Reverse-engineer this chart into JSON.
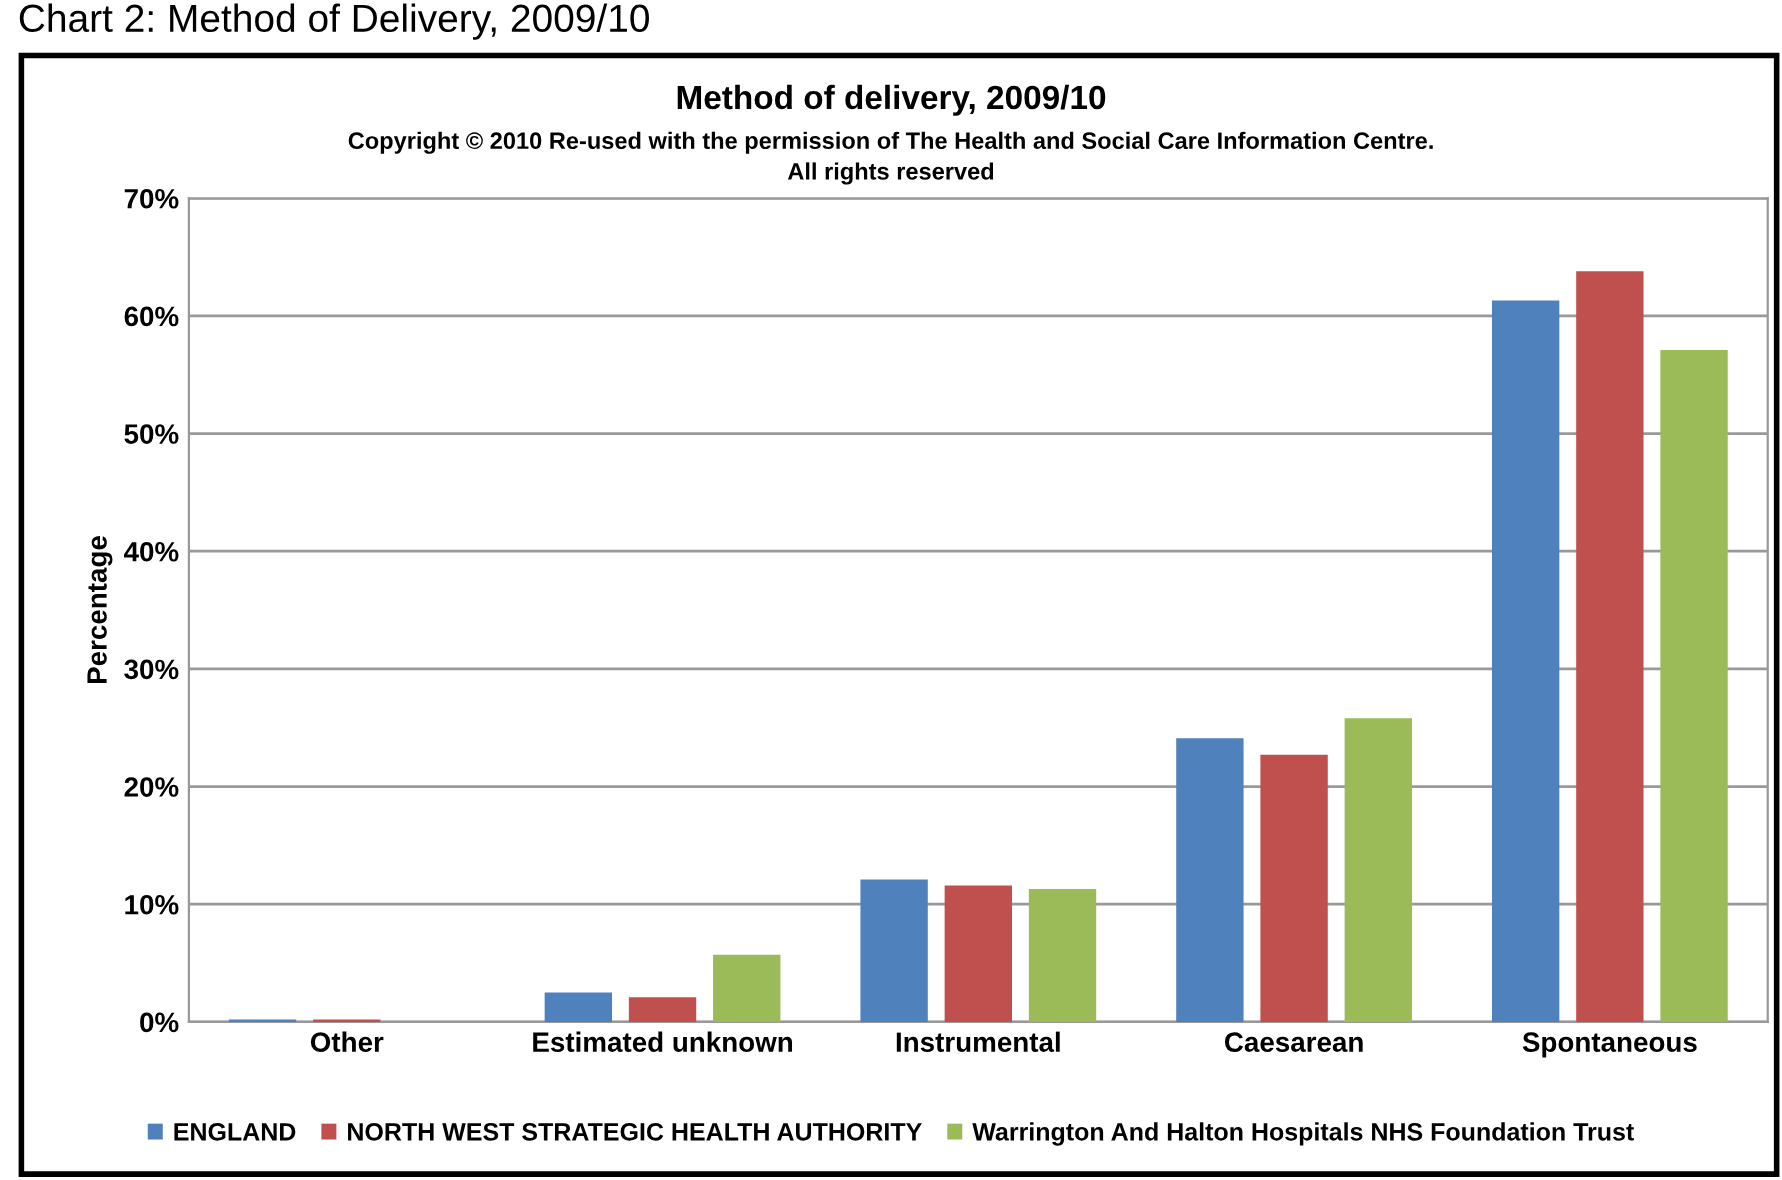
{
  "chart_data": {
    "type": "bar",
    "title": "Method of delivery, 2009/10",
    "subtitle": "Copyright © 2010 Re-used with the permission of The Health and Social Care Information Centre.\nAll rights reserved",
    "annotations": [
      "Chart 2: Method of Delivery, 2009/10"
    ],
    "ylabel": "Percentage",
    "categories": [
      "Other",
      "Estimated unknown",
      "Instrumental",
      "Caesarean",
      "Spontaneous"
    ],
    "series": [
      {
        "name": "ENGLAND",
        "color": "#4f81bd",
        "values": [
          0.2,
          2.5,
          12.1,
          24.1,
          61.3
        ]
      },
      {
        "name": "NORTH WEST STRATEGIC HEALTH AUTHORITY",
        "color": "#c0504d",
        "values": [
          0.2,
          2.1,
          11.6,
          22.7,
          63.8
        ]
      },
      {
        "name": "Warrington And Halton Hospitals NHS Foundation Trust",
        "color": "#9bbb59",
        "values": [
          0,
          5.7,
          11.3,
          25.8,
          57.1
        ]
      }
    ],
    "ylim": [
      0,
      70
    ],
    "yticks": [
      {
        "value": 0,
        "label": "0%"
      },
      {
        "value": 10,
        "label": "10%"
      },
      {
        "value": 20,
        "label": "20%"
      },
      {
        "value": 30,
        "label": "30%"
      },
      {
        "value": 40,
        "label": "40%"
      },
      {
        "value": 50,
        "label": "50%"
      },
      {
        "value": 60,
        "label": "60%"
      },
      {
        "value": 70,
        "label": "70%"
      }
    ],
    "grid": "y",
    "legend": "bottom"
  }
}
